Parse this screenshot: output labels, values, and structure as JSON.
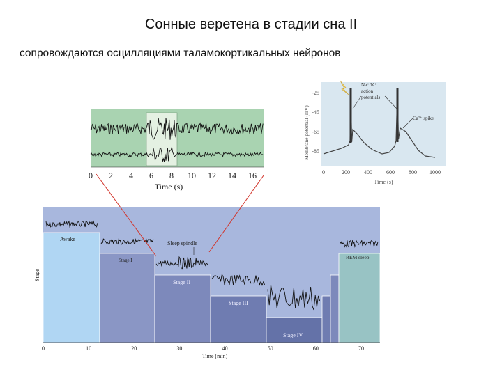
{
  "title": "Сонные веретена в стадии сна II",
  "subtitle": "сопровождаются  осцилляциями таламокортикальных нейронов",
  "eeg_figure": {
    "x_ticks": [
      "0",
      "2",
      "4",
      "6",
      "8",
      "10",
      "12",
      "14",
      "16"
    ],
    "x_label": "Time (s)"
  },
  "ap_figure": {
    "y_label": "Membrane potential (mV)",
    "y_ticks": [
      "-25",
      "-45",
      "-65",
      "-85"
    ],
    "x_ticks": [
      "0",
      "200",
      "400",
      "600",
      "800",
      "1000"
    ],
    "x_label": "Time (s)",
    "annotation_na": "Na⁺/K⁺",
    "annotation_action": "action",
    "annotation_potentials": "potentials",
    "annotation_ca": "Ca²⁺ spike"
  },
  "hypnogram": {
    "y_label": "Stage",
    "stage_awake": "Awake",
    "stage_1": "Stage I",
    "stage_2": "Stage II",
    "stage_3": "Stage III",
    "stage_4": "Stage IV",
    "rem": "REM sleep",
    "spindle": "Sleep spindle",
    "x_ticks": [
      "0",
      "10",
      "20",
      "30",
      "40",
      "50",
      "60",
      "70"
    ],
    "x_label": "Time (min)"
  },
  "colors": {
    "eeg_bg": "#a9d3b1",
    "eeg_window": "#e4f1e2",
    "ap_bg": "#d9e7f0",
    "hypno_bg": "#a8b7dd",
    "awake": "#b0d6f3",
    "stage_1": "#8a96c5",
    "stage_2": "#7d89bb",
    "stage_3": "#6f7cb1",
    "stage_4": "#6472a8",
    "rem": "#98c3c4",
    "connector": "#d2342a"
  }
}
